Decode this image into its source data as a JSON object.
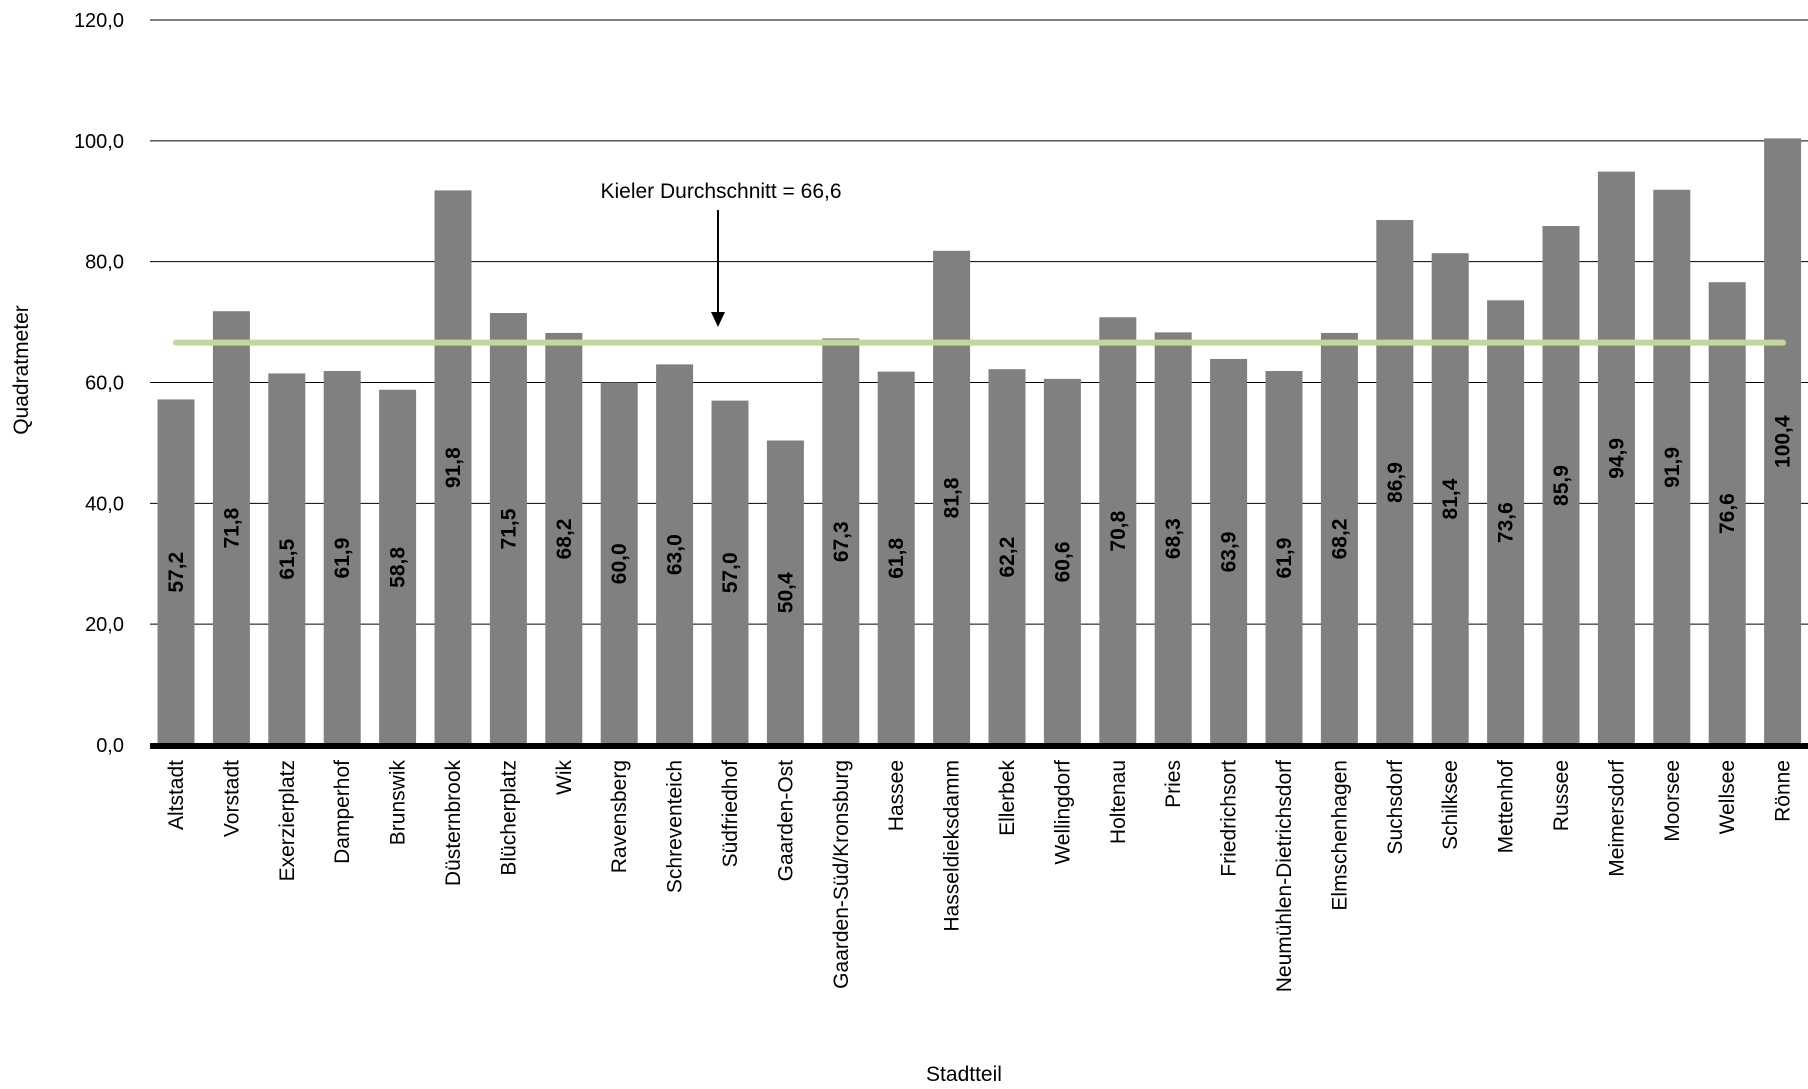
{
  "chart_data": {
    "type": "bar",
    "categories": [
      "Altstadt",
      "Vorstadt",
      "Exerzierplatz",
      "Damperhof",
      "Brunswik",
      "Düsternbrook",
      "Blücherplatz",
      "Wik",
      "Ravensberg",
      "Schreventeich",
      "Südfriedhof",
      "Gaarden-Ost",
      "Gaarden-Süd/Kronsburg",
      "Hassee",
      "Hasseldieksdamm",
      "Ellerbek",
      "Wellingdorf",
      "Holtenau",
      "Pries",
      "Friedrichsort",
      "Neumühlen-Dietrichsdorf",
      "Elmschenhagen",
      "Suchsdorf",
      "Schilksee",
      "Mettenhof",
      "Russee",
      "Meimersdorf",
      "Moorsee",
      "Wellsee",
      "Rönne"
    ],
    "values": [
      57.2,
      71.8,
      61.5,
      61.9,
      58.8,
      91.8,
      71.5,
      68.2,
      60.0,
      63.0,
      57.0,
      50.4,
      67.3,
      61.8,
      81.8,
      62.2,
      60.6,
      70.8,
      68.3,
      63.9,
      61.9,
      68.2,
      86.9,
      81.4,
      73.6,
      85.9,
      94.9,
      91.9,
      76.6,
      100.4
    ],
    "value_labels": [
      "57,2",
      "71,8",
      "61,5",
      "61,9",
      "58,8",
      "91,8",
      "71,5",
      "68,2",
      "60,0",
      "63,0",
      "57,0",
      "50,4",
      "67,3",
      "61,8",
      "81,8",
      "62,2",
      "60,6",
      "70,8",
      "68,3",
      "63,9",
      "61,9",
      "68,2",
      "86,9",
      "81,4",
      "73,6",
      "85,9",
      "94,9",
      "91,9",
      "76,6",
      "100,4"
    ],
    "title": "",
    "xlabel": "Stadtteil",
    "ylabel": "Quadratmeter",
    "ylim": [
      0,
      120
    ],
    "yticks": [
      0,
      20,
      40,
      60,
      80,
      100,
      120
    ],
    "ytick_labels": [
      "0,0",
      "20,0",
      "40,0",
      "60,0",
      "80,0",
      "100,0",
      "120,0"
    ],
    "grid": true,
    "reference_line": {
      "value": 66.6,
      "label": "Kieler Durchschnitt = 66,6",
      "color": "#c3d69b"
    },
    "bar_color": "#808080",
    "grid_color": "#000000"
  }
}
